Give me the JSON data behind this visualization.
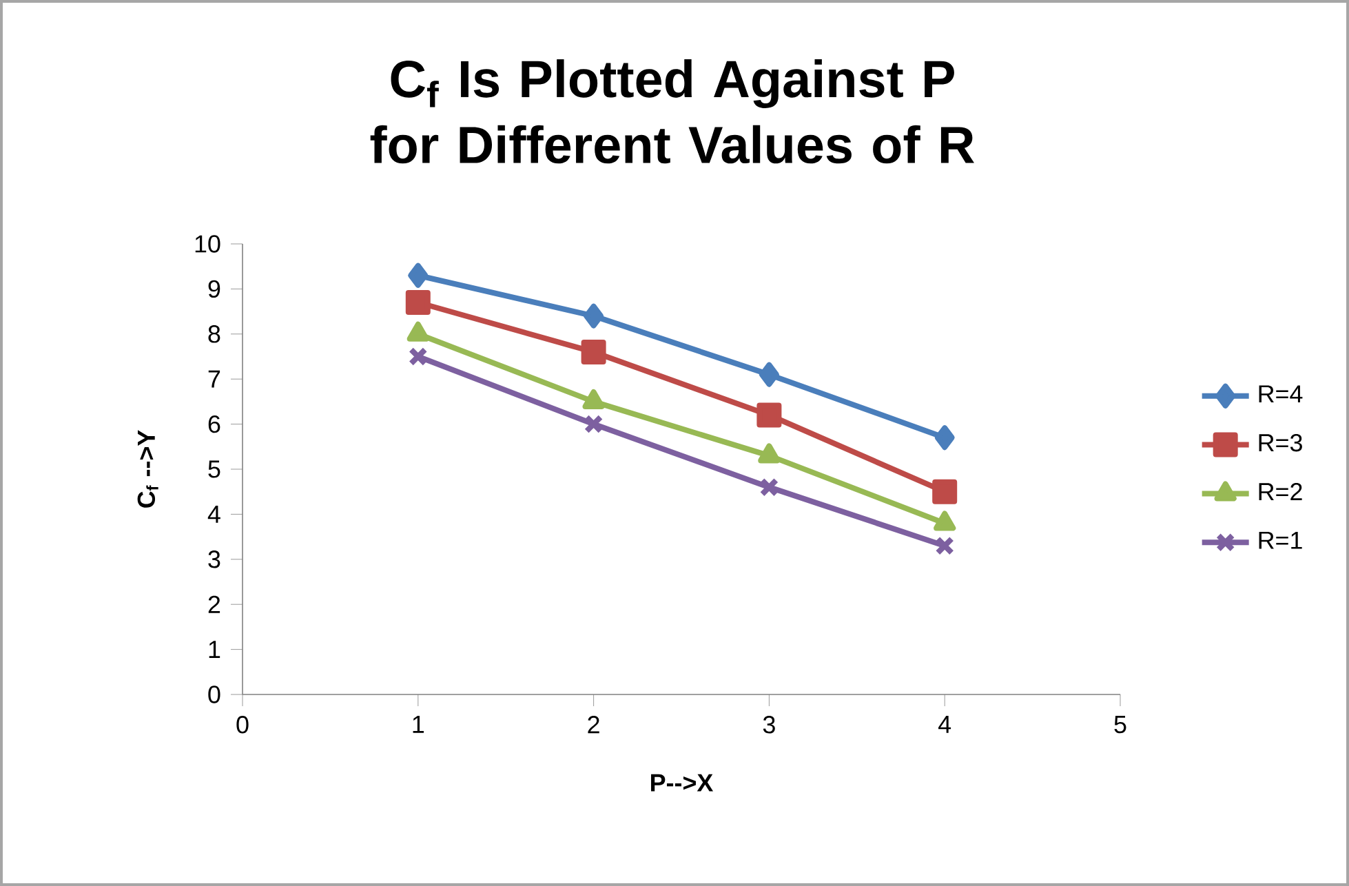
{
  "chart_data": {
    "type": "line",
    "title": "C$_{f}$ Is Plotted Against P for Different Values of R",
    "xlabel": "P-->X",
    "ylabel": "C$_{f}$ -->Y",
    "x": [
      1,
      2,
      3,
      4
    ],
    "series": [
      {
        "name": "R=4",
        "color": "#4a7ebb",
        "marker": "diamond",
        "values": [
          9.3,
          8.4,
          7.1,
          5.7
        ]
      },
      {
        "name": "R=3",
        "color": "#be4b48",
        "marker": "square",
        "values": [
          8.7,
          7.6,
          6.2,
          4.5
        ]
      },
      {
        "name": "R=2",
        "color": "#98b954",
        "marker": "triangle",
        "values": [
          8.0,
          6.5,
          5.3,
          3.8
        ]
      },
      {
        "name": "R=1",
        "color": "#7d60a0",
        "marker": "cross",
        "values": [
          7.5,
          6.0,
          4.6,
          3.3
        ]
      }
    ],
    "xlim": [
      0,
      5
    ],
    "xticks": [
      0,
      1,
      2,
      3,
      4,
      5
    ],
    "ylim": [
      0,
      10
    ],
    "yticks": [
      0,
      1,
      2,
      3,
      4,
      5,
      6,
      7,
      8,
      9,
      10
    ],
    "grid": false,
    "legend": "right",
    "line_style": "solid"
  }
}
